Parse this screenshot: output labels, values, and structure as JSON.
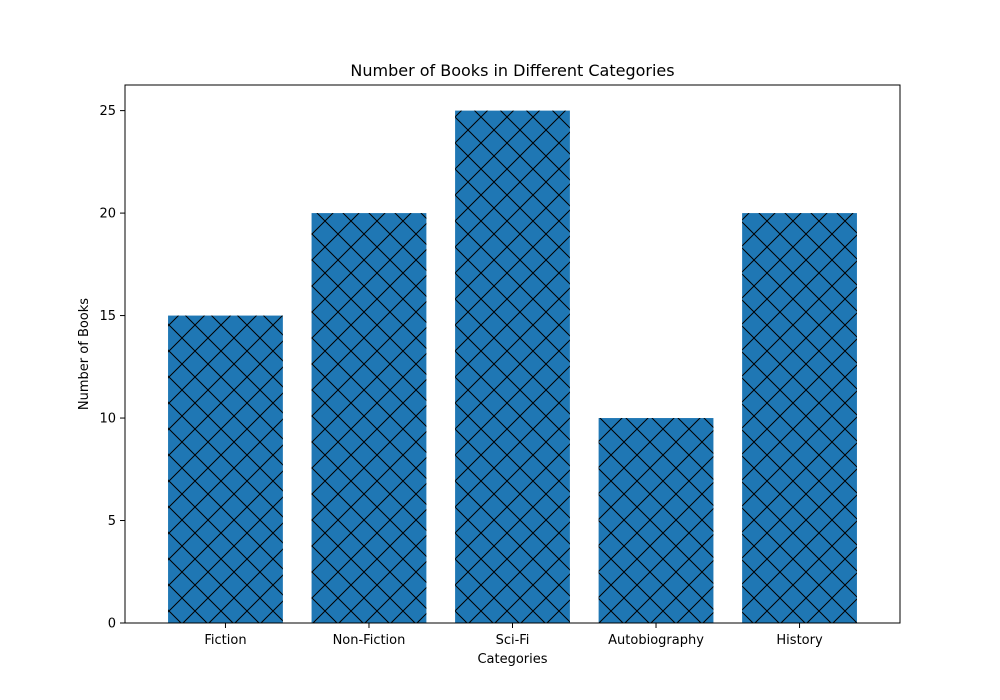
{
  "chart_data": {
    "type": "bar",
    "title": "Number of Books in Different Categories",
    "xlabel": "Categories",
    "ylabel": "Number of Books",
    "categories": [
      "Fiction",
      "Non-Fiction",
      "Sci-Fi",
      "Autobiography",
      "History"
    ],
    "values": [
      15,
      20,
      25,
      10,
      20
    ],
    "ylim": [
      0,
      26.25
    ],
    "yticks": [
      0,
      5,
      10,
      15,
      20,
      25
    ],
    "bar_color": "#1f77b4",
    "hatch_color": "#000000",
    "hatch": "crosshatch",
    "grid": false,
    "legend": "none"
  }
}
